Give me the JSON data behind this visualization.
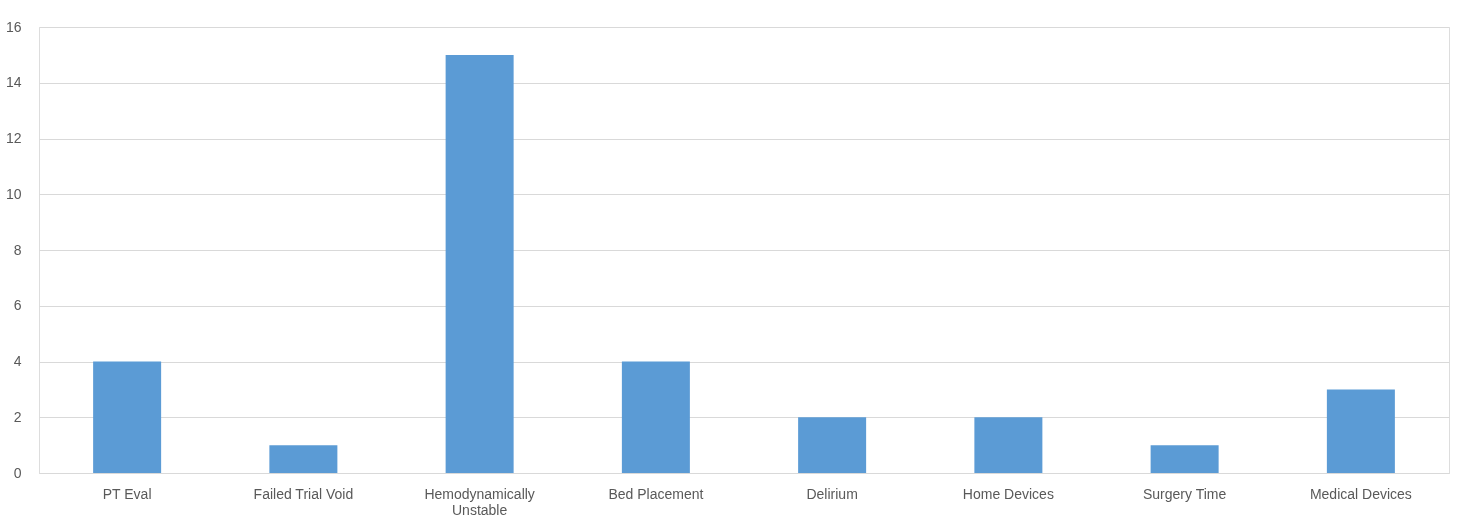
{
  "chart_data": {
    "type": "bar",
    "categories": [
      "PT Eval",
      "Failed Trial Void",
      "Hemodynamically Unstable",
      "Bed Placement",
      "Delirium",
      "Home Devices",
      "Surgery Time",
      "Medical Devices"
    ],
    "values": [
      4,
      1,
      15,
      4,
      2,
      2,
      1,
      3
    ],
    "color": "#5b9bd5",
    "ylim": [
      0,
      16
    ],
    "yticks": [
      0,
      2,
      4,
      6,
      8,
      10,
      12,
      14,
      16
    ],
    "grid": "y"
  }
}
